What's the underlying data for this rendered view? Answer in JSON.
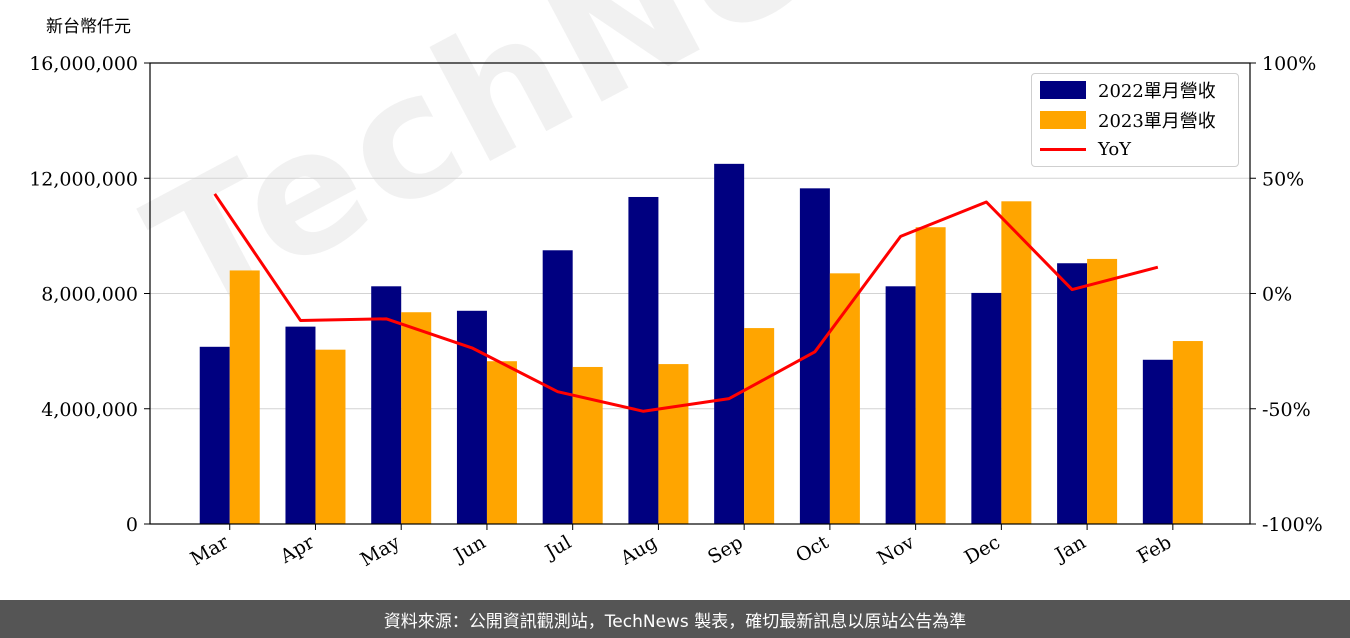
{
  "page": {
    "unit_label": "新台幣仟元",
    "footer": "資料來源：公開資訊觀測站，TechNews 製表，確切最新訊息以原站公告為準",
    "watermark": "TechNews"
  },
  "colors": {
    "series_2022": "#000080",
    "series_2023": "#FFA500",
    "yoy": "#FF0000",
    "grid": "#d3d3d3"
  },
  "chart_data": {
    "type": "bar",
    "categories": [
      "Mar",
      "Apr",
      "May",
      "Jun",
      "Jul",
      "Aug",
      "Sep",
      "Oct",
      "Nov",
      "Dec",
      "Jan",
      "Feb"
    ],
    "series": [
      {
        "name": "2022單月營收",
        "values": [
          6150000,
          6850000,
          8250000,
          7400000,
          9500000,
          11350000,
          12500000,
          11650000,
          8250000,
          8020000,
          9050000,
          5700000
        ]
      },
      {
        "name": "2023單月營收",
        "values": [
          8800000,
          6050000,
          7350000,
          5650000,
          5450000,
          5550000,
          6800000,
          8700000,
          10300000,
          11200000,
          9200000,
          6350000
        ]
      }
    ],
    "line_series": {
      "name": "YoY",
      "values": [
        43.2,
        -11.7,
        -11.0,
        -23.6,
        -42.6,
        -51.1,
        -45.6,
        -25.3,
        24.8,
        39.7,
        1.7,
        11.4
      ]
    },
    "ylim": [
      0,
      16000000
    ],
    "y_ticks": [
      "0",
      "4,000,000",
      "8,000,000",
      "12,000,000",
      "16,000,000"
    ],
    "y_tick_values": [
      0,
      4000000,
      8000000,
      12000000,
      16000000
    ],
    "y2lim": [
      -100,
      100
    ],
    "y2_ticks": [
      "-100%",
      "-50%",
      "0%",
      "50%",
      "100%"
    ],
    "y2_tick_values": [
      -100,
      -50,
      0,
      50,
      100
    ],
    "grid": true,
    "legend": "top-right"
  }
}
